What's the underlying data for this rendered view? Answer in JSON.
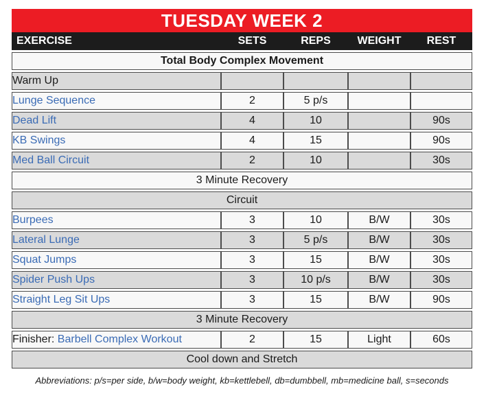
{
  "title": "TUESDAY WEEK 2",
  "columns": [
    "EXERCISE",
    "SETS",
    "REPS",
    "WEIGHT",
    "REST"
  ],
  "colors": {
    "title_bar_red": "#EC1C24",
    "header_black": "#1C1C1C",
    "link_blue": "#3A6BB5",
    "row_gray": "#DADADA",
    "row_white": "#F8F8F8",
    "border": "#4b4b4b"
  },
  "table": {
    "rows": [
      {
        "type": "section",
        "label": "Total Body Complex Movement",
        "bold": true,
        "bg": "white"
      },
      {
        "type": "row",
        "name": "Warm Up",
        "link": false,
        "prefix": "",
        "sets": "",
        "reps": "",
        "weight": "",
        "rest": "",
        "bg": "gray"
      },
      {
        "type": "row",
        "name": "Lunge Sequence",
        "link": true,
        "prefix": "",
        "sets": "2",
        "reps": "5 p/s",
        "weight": "",
        "rest": "",
        "bg": "white"
      },
      {
        "type": "row",
        "name": "Dead Lift",
        "link": true,
        "prefix": "",
        "sets": "4",
        "reps": "10",
        "weight": "",
        "rest": "90s",
        "bg": "gray"
      },
      {
        "type": "row",
        "name": "KB Swings",
        "link": true,
        "prefix": "",
        "sets": "4",
        "reps": "15",
        "weight": "",
        "rest": "90s",
        "bg": "white"
      },
      {
        "type": "row",
        "name": "Med Ball Circuit",
        "link": true,
        "prefix": "",
        "sets": "2",
        "reps": "10",
        "weight": "",
        "rest": "30s",
        "bg": "gray"
      },
      {
        "type": "section",
        "label": "3 Minute Recovery",
        "bold": false,
        "bg": "white"
      },
      {
        "type": "section",
        "label": "Circuit",
        "bold": false,
        "bg": "gray"
      },
      {
        "type": "row",
        "name": "Burpees",
        "link": true,
        "prefix": "",
        "sets": "3",
        "reps": "10",
        "weight": "B/W",
        "rest": "30s",
        "bg": "white"
      },
      {
        "type": "row",
        "name": "Lateral Lunge",
        "link": true,
        "prefix": "",
        "sets": "3",
        "reps": "5 p/s",
        "weight": "B/W",
        "rest": "30s",
        "bg": "gray"
      },
      {
        "type": "row",
        "name": "Squat Jumps",
        "link": true,
        "prefix": "",
        "sets": "3",
        "reps": "15",
        "weight": "B/W",
        "rest": "30s",
        "bg": "white"
      },
      {
        "type": "row",
        "name": "Spider Push Ups",
        "link": true,
        "prefix": "",
        "sets": "3",
        "reps": "10 p/s",
        "weight": "B/W",
        "rest": "30s",
        "bg": "gray"
      },
      {
        "type": "row",
        "name": "Straight Leg Sit Ups",
        "link": true,
        "prefix": "",
        "sets": "3",
        "reps": "15",
        "weight": "B/W",
        "rest": "90s",
        "bg": "white"
      },
      {
        "type": "section",
        "label": "3 Minute Recovery",
        "bold": false,
        "bg": "gray"
      },
      {
        "type": "row",
        "name": "Barbell Complex Workout",
        "link": true,
        "prefix": "Finisher: ",
        "sets": "2",
        "reps": "15",
        "weight": "Light",
        "rest": "60s",
        "bg": "white"
      },
      {
        "type": "section",
        "label": "Cool down and Stretch",
        "bold": false,
        "bg": "gray"
      }
    ]
  },
  "footer": "Abbreviations: p/s=per side, b/w=body weight, kb=kettlebell, db=dumbbell, mb=medicine ball, s=seconds"
}
